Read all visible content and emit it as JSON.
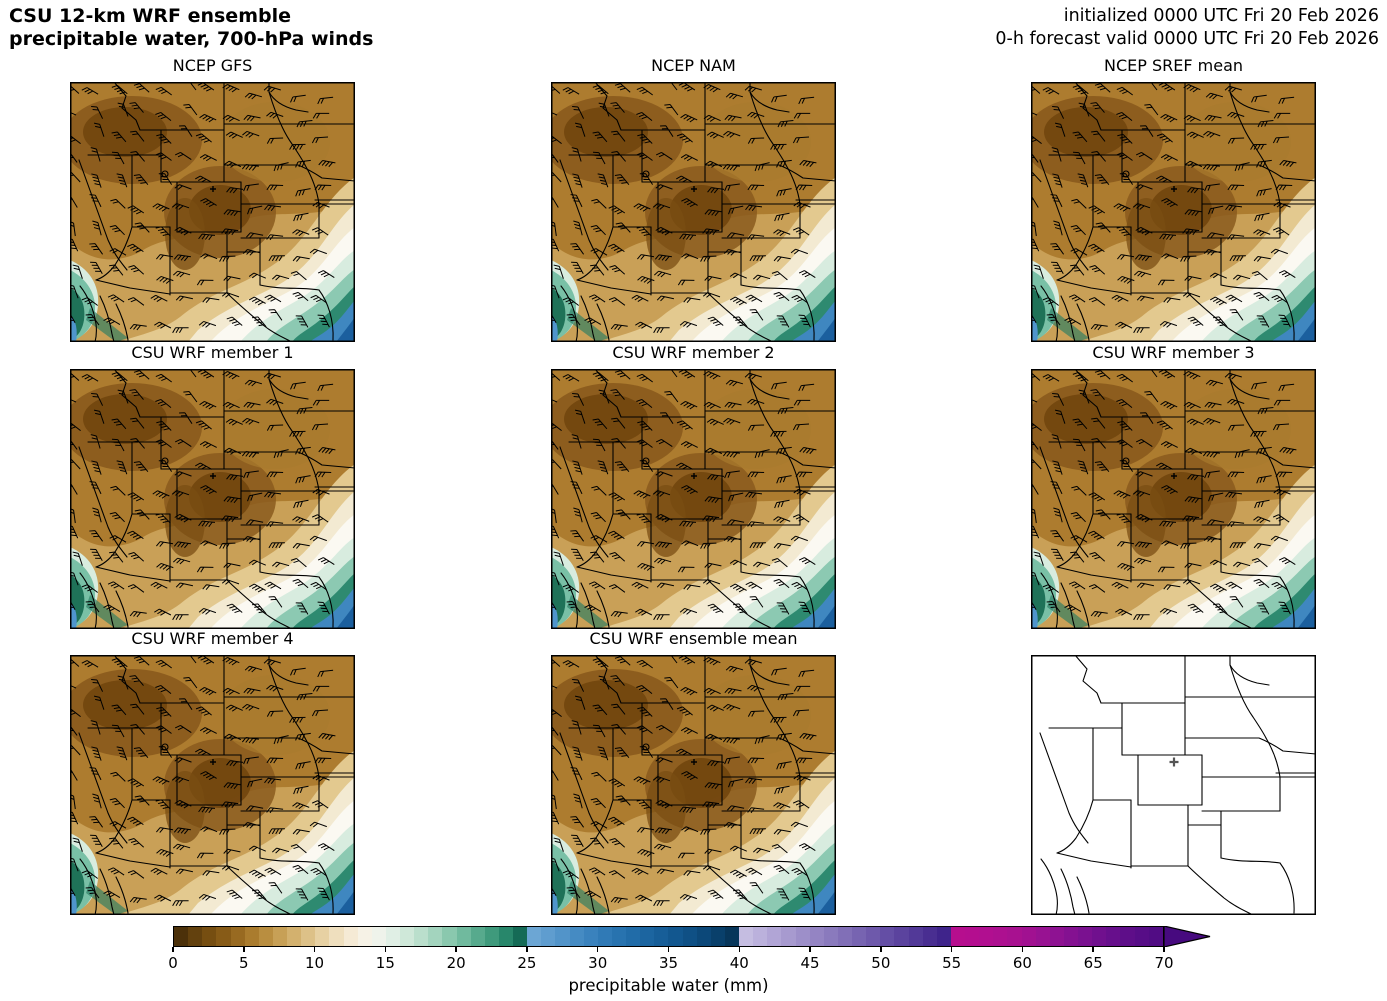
{
  "figure": {
    "title_line1": "CSU 12-km WRF ensemble",
    "title_line2": "precipitable water, 700-hPa winds",
    "init_line1": "initialized 0000 UTC Fri 20 Feb 2026",
    "init_line2": "0-h forecast valid 0000 UTC Fri 20 Feb 2026"
  },
  "panels": [
    {
      "title": "NCEP GFS",
      "kind": "pw-map"
    },
    {
      "title": "NCEP NAM",
      "kind": "pw-map"
    },
    {
      "title": "NCEP SREF mean",
      "kind": "pw-map"
    },
    {
      "title": "CSU WRF member 1",
      "kind": "pw-map"
    },
    {
      "title": "CSU WRF member 2",
      "kind": "pw-map"
    },
    {
      "title": "CSU WRF member 3",
      "kind": "pw-map"
    },
    {
      "title": "CSU WRF member 4",
      "kind": "pw-map"
    },
    {
      "title": "CSU WRF ensemble mean",
      "kind": "pw-map"
    },
    {
      "title": "",
      "kind": "outline-map"
    }
  ],
  "colorbar": {
    "label": "precipitable water (mm)",
    "ticks": [
      0,
      5,
      10,
      15,
      20,
      25,
      30,
      35,
      40,
      45,
      50,
      55,
      60,
      65,
      70
    ],
    "min": 0,
    "max": 70,
    "extend": "max",
    "arrow_color": "#470a7f",
    "stops": [
      {
        "v": 0,
        "c": "#3f2708"
      },
      {
        "v": 1,
        "c": "#593a0c"
      },
      {
        "v": 2,
        "c": "#6d470f"
      },
      {
        "v": 3,
        "c": "#7e5413"
      },
      {
        "v": 4,
        "c": "#8f621b"
      },
      {
        "v": 5,
        "c": "#a17226"
      },
      {
        "v": 6,
        "c": "#b28535"
      },
      {
        "v": 7,
        "c": "#c0974b"
      },
      {
        "v": 8,
        "c": "#cda861"
      },
      {
        "v": 9,
        "c": "#d8b97b"
      },
      {
        "v": 10,
        "c": "#e2c995"
      },
      {
        "v": 11,
        "c": "#ebd8b1"
      },
      {
        "v": 12,
        "c": "#f2e5ca"
      },
      {
        "v": 13,
        "c": "#f7efe0"
      },
      {
        "v": 14,
        "c": "#f5f4ec"
      },
      {
        "v": 15,
        "c": "#e8f2ea"
      },
      {
        "v": 16,
        "c": "#d8ecdf"
      },
      {
        "v": 17,
        "c": "#c5e4d3"
      },
      {
        "v": 18,
        "c": "#afdac5"
      },
      {
        "v": 19,
        "c": "#97ceb6"
      },
      {
        "v": 20,
        "c": "#7dc1a6"
      },
      {
        "v": 21,
        "c": "#63b295"
      },
      {
        "v": 22,
        "c": "#4aa284"
      },
      {
        "v": 23,
        "c": "#339173"
      },
      {
        "v": 24,
        "c": "#1c7c62"
      },
      {
        "v": 25,
        "c": "#0d5a49"
      },
      {
        "v": 25.05,
        "c": "#72aad6"
      },
      {
        "v": 27,
        "c": "#5898cc"
      },
      {
        "v": 29,
        "c": "#3f86c0"
      },
      {
        "v": 31,
        "c": "#2b76b2"
      },
      {
        "v": 33,
        "c": "#1e68a4"
      },
      {
        "v": 35,
        "c": "#145a94"
      },
      {
        "v": 37,
        "c": "#0d4c80"
      },
      {
        "v": 39,
        "c": "#083c64"
      },
      {
        "v": 40,
        "c": "#06304f"
      },
      {
        "v": 40.05,
        "c": "#c9c2e4"
      },
      {
        "v": 42,
        "c": "#b6abd9"
      },
      {
        "v": 44,
        "c": "#a294cc"
      },
      {
        "v": 46,
        "c": "#8f7fc0"
      },
      {
        "v": 48,
        "c": "#7c69b4"
      },
      {
        "v": 50,
        "c": "#6953a8"
      },
      {
        "v": 52,
        "c": "#563e9b"
      },
      {
        "v": 54,
        "c": "#44298e"
      },
      {
        "v": 55,
        "c": "#3a1f88"
      },
      {
        "v": 55.05,
        "c": "#b70e8e"
      },
      {
        "v": 58,
        "c": "#b00f90"
      },
      {
        "v": 60,
        "c": "#a51190"
      },
      {
        "v": 62,
        "c": "#931292"
      },
      {
        "v": 64,
        "c": "#7f1191"
      },
      {
        "v": 66,
        "c": "#6b0f8d"
      },
      {
        "v": 68,
        "c": "#5a0d88"
      },
      {
        "v": 70,
        "c": "#4e0b83"
      },
      {
        "v": 73,
        "c": "#470a7f"
      }
    ]
  },
  "chart_data": {
    "type": "heatmap",
    "title": "CSU 12-km WRF ensemble precipitable water, 700-hPa winds",
    "initialized": "0000 UTC Fri 20 Feb 2026",
    "forecast_valid": "0-h forecast valid 0000 UTC Fri 20 Feb 2026",
    "variable": "precipitable water",
    "units": "mm",
    "overlay": "700-hPa wind barbs (black)",
    "layout": "3x3 grid of map panels sharing one horizontal colorbar at bottom",
    "panel_titles": [
      "NCEP GFS",
      "NCEP NAM",
      "NCEP SREF mean",
      "CSU WRF member 1",
      "CSU WRF member 2",
      "CSU WRF member 3",
      "CSU WRF member 4",
      "CSU WRF ensemble mean",
      ""
    ],
    "bottom_right_panel": "blank state-outline map with a plus marker in northern Colorado",
    "colorbar_label": "precipitable water (mm)",
    "colorbar_ticks": [
      0,
      5,
      10,
      15,
      20,
      25,
      30,
      35,
      40,
      45,
      50,
      55,
      60,
      65,
      70
    ],
    "colorbar_range": [
      0,
      70
    ],
    "colorbar_extend": "max (pointed dark-purple arrow past 70)",
    "value_pattern": "dry browns (0-10 mm) over the interior western US and Rockies; cream/white band (10-15 mm) arcing across the southern plains; teal-greens (15-25 mm) and blues (25-40 mm) toward the lower-left coast, gulf and southeast/right edges",
    "grid": false,
    "legend_position": "bottom horizontal colorbar"
  }
}
